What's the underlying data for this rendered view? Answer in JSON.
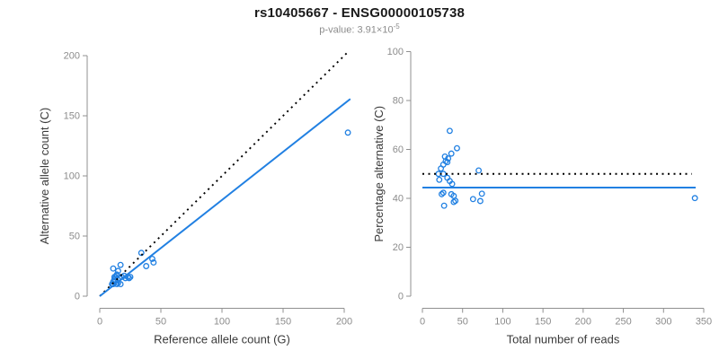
{
  "header": {
    "title": "rs10405667 - ENSG00000105738",
    "pvalue_prefix": "p-value: 3.91×10",
    "pvalue_exponent": "-5"
  },
  "colors": {
    "accent_blue": "#2180e2",
    "dotted_black": "#000000",
    "axis_gray": "#909090",
    "tick_label_gray": "#8c8c8c",
    "axis_title_dark": "#3a3a3a"
  },
  "chart_data": [
    {
      "type": "scatter",
      "name": "allele-count-scatter",
      "xlabel": "Reference allele count (G)",
      "ylabel": "Alternative allele count (C)",
      "xlim": [
        0,
        200
      ],
      "ylim": [
        0,
        200
      ],
      "xticks": [
        0,
        50,
        100,
        150,
        200
      ],
      "yticks": [
        0,
        50,
        100,
        150,
        200
      ],
      "grid": false,
      "point_color": "#2180e2",
      "points": [
        [
          11,
          23
        ],
        [
          17,
          26
        ],
        [
          12,
          16
        ],
        [
          14,
          18
        ],
        [
          15,
          21
        ],
        [
          12,
          14
        ],
        [
          13,
          16
        ],
        [
          14,
          17
        ],
        [
          11,
          12
        ],
        [
          13,
          13
        ],
        [
          10,
          10
        ],
        [
          34,
          36
        ],
        [
          11,
          10
        ],
        [
          16,
          15
        ],
        [
          18,
          16
        ],
        [
          20,
          17
        ],
        [
          14,
          10
        ],
        [
          15,
          11
        ],
        [
          21,
          15
        ],
        [
          23,
          16
        ],
        [
          24,
          15
        ],
        [
          25,
          16
        ],
        [
          17,
          10
        ],
        [
          38,
          25
        ],
        [
          44,
          28
        ],
        [
          43,
          31
        ],
        [
          203,
          136
        ]
      ],
      "lines": [
        {
          "name": "identity-line",
          "style": "dotted",
          "color": "#000000",
          "x": [
            0,
            203
          ],
          "y": [
            0,
            203
          ]
        },
        {
          "name": "fit-line",
          "style": "solid",
          "color": "#2180e2",
          "x": [
            0,
            205
          ],
          "y": [
            0,
            164
          ]
        }
      ]
    },
    {
      "type": "scatter",
      "name": "percentage-alternative-scatter",
      "xlabel": "Total number of reads",
      "ylabel": "Percentage alternative (C)",
      "xlim": [
        0,
        350
      ],
      "ylim": [
        0,
        100
      ],
      "xticks": [
        0,
        50,
        100,
        150,
        200,
        250,
        300,
        350
      ],
      "yticks": [
        0,
        20,
        40,
        60,
        80,
        100
      ],
      "grid": false,
      "point_color": "#2180e2",
      "points": [
        [
          34,
          67.6
        ],
        [
          43,
          60.5
        ],
        [
          28,
          57.1
        ],
        [
          32,
          56.3
        ],
        [
          36,
          58.3
        ],
        [
          26,
          53.8
        ],
        [
          29,
          55.2
        ],
        [
          31,
          54.8
        ],
        [
          23,
          52.2
        ],
        [
          26,
          50.0
        ],
        [
          20,
          50.0
        ],
        [
          70,
          51.4
        ],
        [
          21,
          47.6
        ],
        [
          31,
          48.4
        ],
        [
          34,
          47.1
        ],
        [
          37,
          45.9
        ],
        [
          24,
          41.7
        ],
        [
          26,
          42.3
        ],
        [
          36,
          41.7
        ],
        [
          39,
          41.0
        ],
        [
          39,
          38.5
        ],
        [
          41,
          39.0
        ],
        [
          27,
          37.0
        ],
        [
          63,
          39.7
        ],
        [
          72,
          38.9
        ],
        [
          74,
          41.9
        ],
        [
          339,
          40.1
        ]
      ],
      "lines": [
        {
          "name": "expected-50pct-line",
          "style": "dotted",
          "color": "#000000",
          "x": [
            0,
            335
          ],
          "y": [
            50,
            50
          ]
        },
        {
          "name": "mean-percentage-line",
          "style": "solid",
          "color": "#2180e2",
          "x": [
            0,
            340
          ],
          "y": [
            44.4,
            44.4
          ]
        }
      ]
    }
  ]
}
